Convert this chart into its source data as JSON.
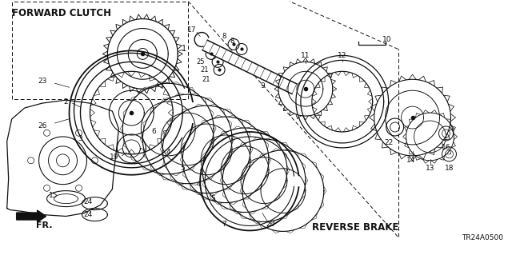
{
  "background_color": "#ffffff",
  "forward_clutch_label": "FORWARD CLUTCH",
  "reverse_brake_label": "REVERSE BRAKE",
  "part_number": "TR24A0500",
  "fr_label": "FR.",
  "line_color": "#111111"
}
